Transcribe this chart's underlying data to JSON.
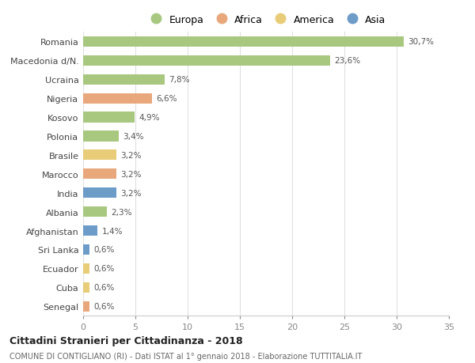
{
  "countries": [
    "Romania",
    "Macedonia d/N.",
    "Ucraina",
    "Nigeria",
    "Kosovo",
    "Polonia",
    "Brasile",
    "Marocco",
    "India",
    "Albania",
    "Afghanistan",
    "Sri Lanka",
    "Ecuador",
    "Cuba",
    "Senegal"
  ],
  "values": [
    30.7,
    23.6,
    7.8,
    6.6,
    4.9,
    3.4,
    3.2,
    3.2,
    3.2,
    2.3,
    1.4,
    0.6,
    0.6,
    0.6,
    0.6
  ],
  "labels": [
    "30,7%",
    "23,6%",
    "7,8%",
    "6,6%",
    "4,9%",
    "3,4%",
    "3,2%",
    "3,2%",
    "3,2%",
    "2,3%",
    "1,4%",
    "0,6%",
    "0,6%",
    "0,6%",
    "0,6%"
  ],
  "categories": [
    "Europa",
    "Europa",
    "Europa",
    "Africa",
    "Europa",
    "Europa",
    "America",
    "Africa",
    "Asia",
    "Europa",
    "Asia",
    "Asia",
    "America",
    "America",
    "Africa"
  ],
  "colors": {
    "Europa": "#a8c880",
    "Africa": "#e8a87c",
    "America": "#e8cc78",
    "Asia": "#6e9cc8"
  },
  "title": "Cittadini Stranieri per Cittadinanza - 2018",
  "subtitle": "COMUNE DI CONTIGLIANO (RI) - Dati ISTAT al 1° gennaio 2018 - Elaborazione TUTTITALIA.IT",
  "xlim": [
    0,
    35
  ],
  "xticks": [
    0,
    5,
    10,
    15,
    20,
    25,
    30,
    35
  ],
  "background_color": "#ffffff",
  "grid_color": "#e0e0e0",
  "bar_height": 0.55
}
